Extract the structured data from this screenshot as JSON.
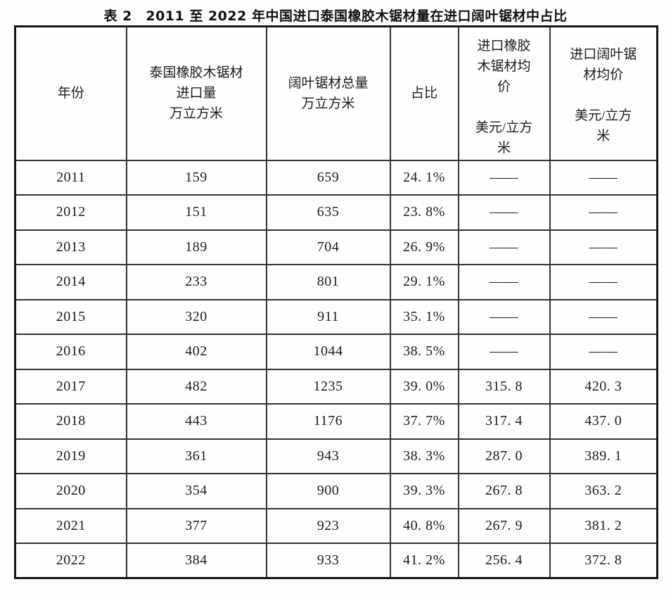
{
  "title": "表 2　2011 至 2022 年中国进口泰国橡胶木锯材量在进口阔叶锯材中占比",
  "table": {
    "headers": [
      {
        "id": "year",
        "label": "年份"
      },
      {
        "id": "thai-rubber-import-volume",
        "label": "泰国橡胶木锯材\n进口量\n万立方米"
      },
      {
        "id": "hardwood-total-volume",
        "label": "阔叶锯材总量\n万立方米"
      },
      {
        "id": "share",
        "label": "占比"
      },
      {
        "id": "rubber-avg-price",
        "label": "进口橡胶\n木锯材均\n价\n\n美元/立方\n米"
      },
      {
        "id": "hardwood-avg-price",
        "label": "进口阔叶锯\n材均价\n\n美元/立方\n米"
      }
    ],
    "rows": [
      [
        "2011",
        "159",
        "659",
        "24. 1%",
        "——",
        "——"
      ],
      [
        "2012",
        "151",
        "635",
        "23. 8%",
        "——",
        "——"
      ],
      [
        "2013",
        "189",
        "704",
        "26. 9%",
        "——",
        "——"
      ],
      [
        "2014",
        "233",
        "801",
        "29. 1%",
        "——",
        "——"
      ],
      [
        "2015",
        "320",
        "911",
        "35. 1%",
        "——",
        "——"
      ],
      [
        "2016",
        "402",
        "1044",
        "38. 5%",
        "——",
        "——"
      ],
      [
        "2017",
        "482",
        "1235",
        "39. 0%",
        "315. 8",
        "420. 3"
      ],
      [
        "2018",
        "443",
        "1176",
        "37. 7%",
        "317. 4",
        "437. 0"
      ],
      [
        "2019",
        "361",
        "943",
        "38. 3%",
        "287. 0",
        "389. 1"
      ],
      [
        "2020",
        "354",
        "900",
        "39. 3%",
        "267. 8",
        "363. 2"
      ],
      [
        "2021",
        "377",
        "923",
        "40. 8%",
        "267. 9",
        "381. 2"
      ],
      [
        "2022",
        "384",
        "933",
        "41. 2%",
        "256. 4",
        "372. 8"
      ]
    ]
  },
  "colors": {
    "background": "#fefefe",
    "border": "#333333",
    "text": "#1c1c1c"
  }
}
